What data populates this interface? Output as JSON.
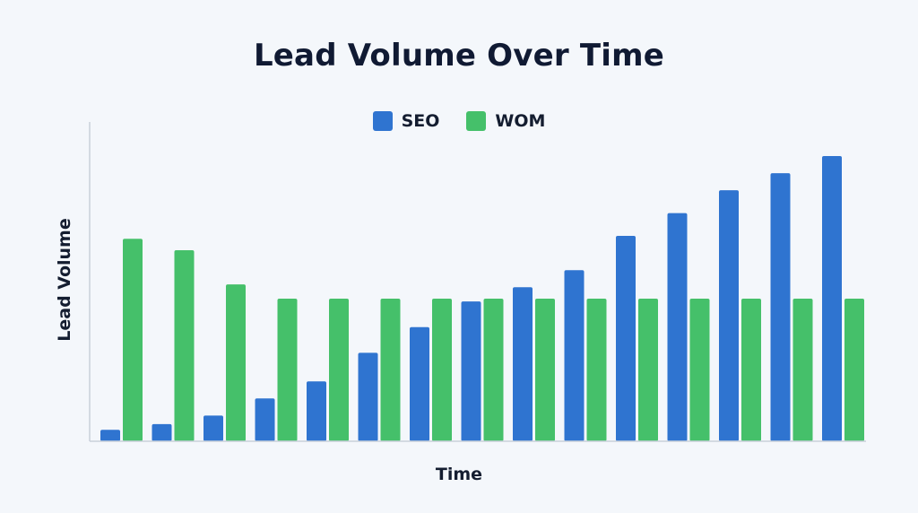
{
  "chart_data": {
    "type": "bar",
    "title": "Lead Volume Over Time",
    "xlabel": "Time",
    "ylabel": "Lead Volume",
    "legend_position": "top-center",
    "grid": false,
    "ylim": [
      0,
      100
    ],
    "x_count": 15,
    "series": [
      {
        "name": "SEO",
        "color": "#2f74d0",
        "values": [
          4,
          6,
          9,
          15,
          21,
          31,
          40,
          49,
          54,
          60,
          72,
          80,
          88,
          94,
          100
        ]
      },
      {
        "name": "WOM",
        "color": "#45c06a",
        "values": [
          71,
          67,
          55,
          50,
          50,
          50,
          50,
          50,
          50,
          50,
          50,
          50,
          50,
          50,
          50
        ]
      }
    ]
  }
}
